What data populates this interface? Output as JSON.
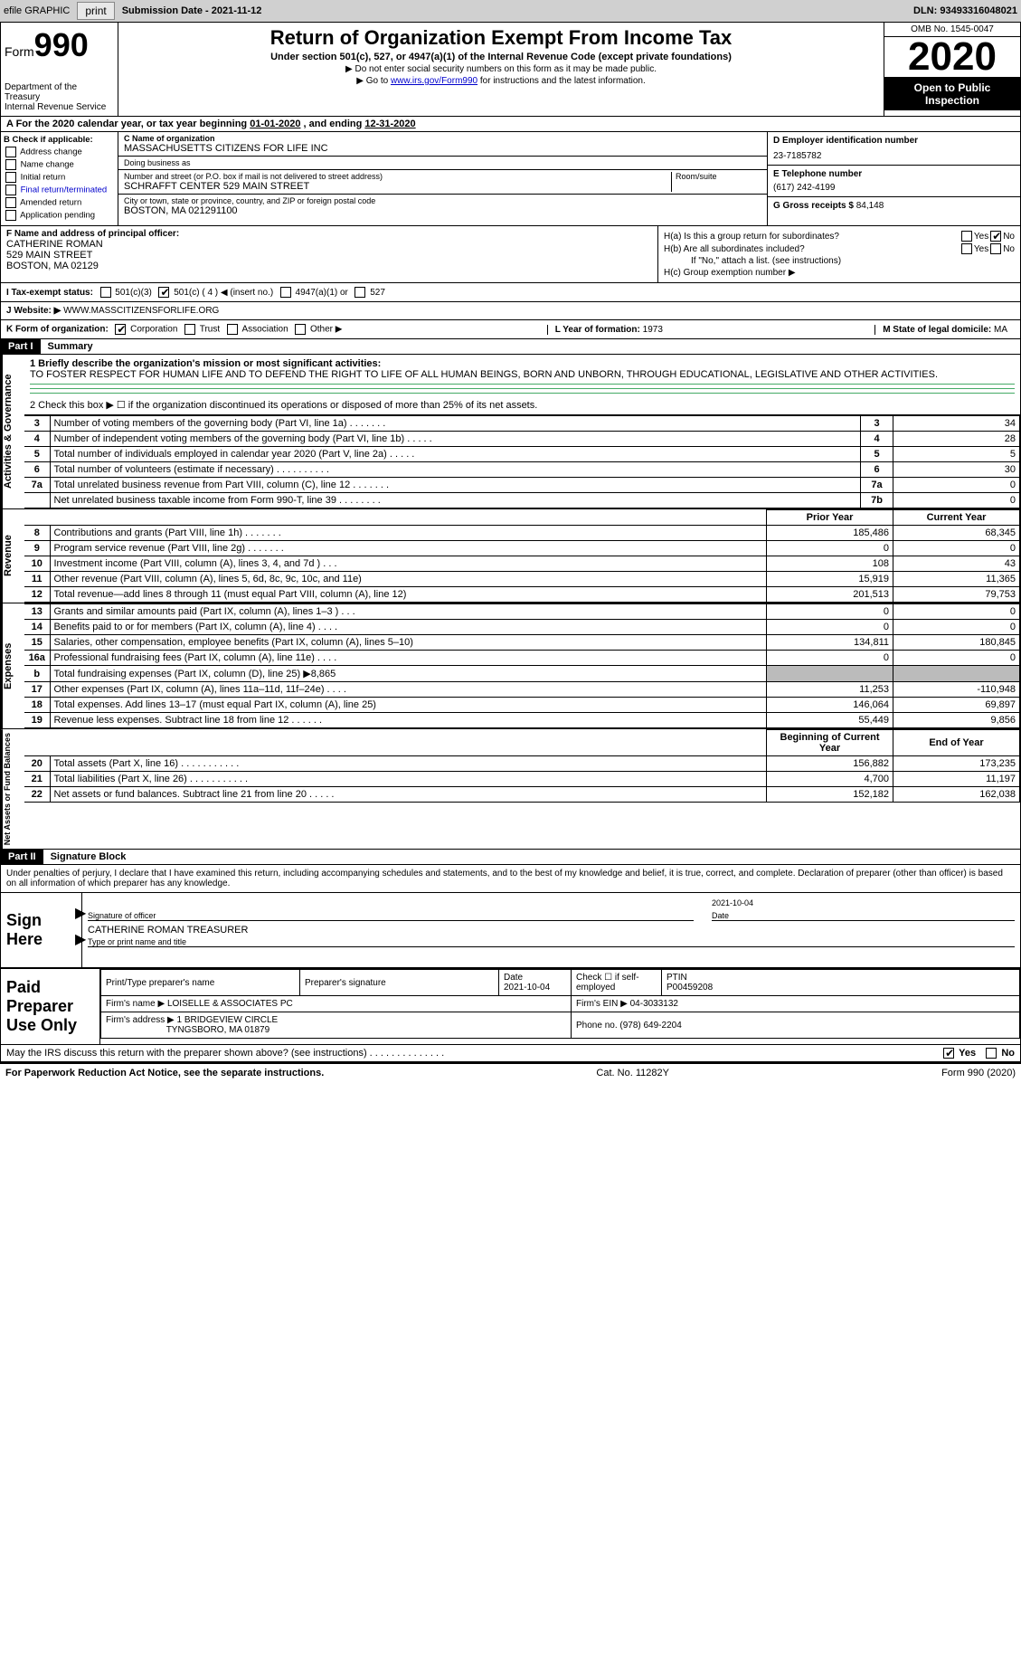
{
  "topbar": {
    "efile_label": "efile GRAPHIC",
    "print_btn": "print",
    "submission_label": "Submission Date - ",
    "submission_date": "2021-11-12",
    "dln_label": "DLN: ",
    "dln": "93493316048021"
  },
  "header": {
    "form_label": "Form",
    "form_number": "990",
    "title": "Return of Organization Exempt From Income Tax",
    "subtitle": "Under section 501(c), 527, or 4947(a)(1) of the Internal Revenue Code (except private foundations)",
    "note1": "▶ Do not enter social security numbers on this form as it may be made public.",
    "note2_pre": "▶ Go to ",
    "note2_link": "www.irs.gov/Form990",
    "note2_post": " for instructions and the latest information.",
    "dept": "Department of the Treasury\nInternal Revenue Service",
    "omb": "OMB No. 1545-0047",
    "year": "2020",
    "open_public": "Open to Public Inspection"
  },
  "period": {
    "text_pre": "A For the 2020 calendar year, or tax year beginning ",
    "begin": "01-01-2020",
    "mid": " , and ending ",
    "end": "12-31-2020"
  },
  "section_b": {
    "label": "B Check if applicable:",
    "opts": [
      "Address change",
      "Name change",
      "Initial return",
      "Final return/terminated",
      "Amended return",
      "Application pending"
    ]
  },
  "section_c": {
    "name_label": "C Name of organization",
    "name": "MASSACHUSETTS CITIZENS FOR LIFE INC",
    "dba_label": "Doing business as",
    "dba": "",
    "addr_label": "Number and street (or P.O. box if mail is not delivered to street address)",
    "room_label": "Room/suite",
    "addr": "SCHRAFFT CENTER 529 MAIN STREET",
    "city_label": "City or town, state or province, country, and ZIP or foreign postal code",
    "city": "BOSTON, MA  021291100"
  },
  "section_d": {
    "label": "D Employer identification number",
    "ein": "23-7185782"
  },
  "section_e": {
    "label": "E Telephone number",
    "phone": "(617) 242-4199"
  },
  "section_g": {
    "label": "G Gross receipts $ ",
    "amount": "84,148"
  },
  "section_f": {
    "label": "F Name and address of principal officer:",
    "name": "CATHERINE ROMAN",
    "addr1": "529 MAIN STREET",
    "addr2": "BOSTON, MA  02129"
  },
  "section_h": {
    "a_label": "H(a)  Is this a group return for subordinates?",
    "a_yes": "Yes",
    "a_no": "No",
    "b_label": "H(b)  Are all subordinates included?",
    "b_note": "If \"No,\" attach a list. (see instructions)",
    "c_label": "H(c)  Group exemption number ▶"
  },
  "section_i": {
    "label": "I    Tax-exempt status:",
    "opts": [
      "501(c)(3)",
      "501(c) ( 4 ) ◀ (insert no.)",
      "4947(a)(1) or",
      "527"
    ]
  },
  "section_j": {
    "label": "J    Website: ▶ ",
    "url": "WWW.MASSCITIZENSFORLIFE.ORG"
  },
  "section_k": {
    "label": "K Form of organization:",
    "opts": [
      "Corporation",
      "Trust",
      "Association",
      "Other ▶"
    ],
    "year_label": "L Year of formation: ",
    "year": "1973",
    "state_label": "M State of legal domicile: ",
    "state": "MA"
  },
  "part1": {
    "header": "Part I",
    "title": "Summary",
    "q1_label": "1  Briefly describe the organization's mission or most significant activities:",
    "mission": "TO FOSTER RESPECT FOR HUMAN LIFE AND TO DEFEND THE RIGHT TO LIFE OF ALL HUMAN BEINGS, BORN AND UNBORN, THROUGH EDUCATIONAL, LEGISLATIVE AND OTHER ACTIVITIES.",
    "q2": "2   Check this box ▶ ☐  if the organization discontinued its operations or disposed of more than 25% of its net assets.",
    "gov_rows": [
      {
        "n": "3",
        "d": "Number of voting members of the governing body (Part VI, line 1a)  .    .    .    .    .    .    .",
        "box": "3",
        "v": "34"
      },
      {
        "n": "4",
        "d": "Number of independent voting members of the governing body (Part VI, line 1b)   .    .    .    .    .",
        "box": "4",
        "v": "28"
      },
      {
        "n": "5",
        "d": "Total number of individuals employed in calendar year 2020 (Part V, line 2a)   .    .    .    .    .",
        "box": "5",
        "v": "5"
      },
      {
        "n": "6",
        "d": "Total number of volunteers (estimate if necessary)   .    .    .    .    .    .    .    .    .    .",
        "box": "6",
        "v": "30"
      },
      {
        "n": "7a",
        "d": "Total unrelated business revenue from Part VIII, column (C), line 12   .    .    .    .    .    .    .",
        "box": "7a",
        "v": "0"
      },
      {
        "n": "",
        "d": "Net unrelated business taxable income from Form 990-T, line 39   .    .    .    .    .    .    .    .",
        "box": "7b",
        "v": "0"
      }
    ],
    "col_prior": "Prior Year",
    "col_current": "Current Year",
    "rev_rows": [
      {
        "n": "8",
        "d": "Contributions and grants (Part VIII, line 1h)   .    .    .    .    .    .    .",
        "p": "185,486",
        "c": "68,345"
      },
      {
        "n": "9",
        "d": "Program service revenue (Part VIII, line 2g)   .    .    .    .    .    .    .",
        "p": "0",
        "c": "0"
      },
      {
        "n": "10",
        "d": "Investment income (Part VIII, column (A), lines 3, 4, and 7d )    .    .    .",
        "p": "108",
        "c": "43"
      },
      {
        "n": "11",
        "d": "Other revenue (Part VIII, column (A), lines 5, 6d, 8c, 9c, 10c, and 11e)",
        "p": "15,919",
        "c": "11,365"
      },
      {
        "n": "12",
        "d": "Total revenue—add lines 8 through 11 (must equal Part VIII, column (A), line 12)",
        "p": "201,513",
        "c": "79,753"
      }
    ],
    "exp_rows": [
      {
        "n": "13",
        "d": "Grants and similar amounts paid (Part IX, column (A), lines 1–3 )   .    .    .",
        "p": "0",
        "c": "0"
      },
      {
        "n": "14",
        "d": "Benefits paid to or for members (Part IX, column (A), line 4)   .    .    .    .",
        "p": "0",
        "c": "0"
      },
      {
        "n": "15",
        "d": "Salaries, other compensation, employee benefits (Part IX, column (A), lines 5–10)",
        "p": "134,811",
        "c": "180,845"
      },
      {
        "n": "16a",
        "d": "Professional fundraising fees (Part IX, column (A), line 11e)   .    .    .    .",
        "p": "0",
        "c": "0"
      },
      {
        "n": "b",
        "d": "Total fundraising expenses (Part IX, column (D), line 25) ▶8,865",
        "p": "grey",
        "c": "grey"
      },
      {
        "n": "17",
        "d": "Other expenses (Part IX, column (A), lines 11a–11d, 11f–24e)   .    .    .    .",
        "p": "11,253",
        "c": "-110,948"
      },
      {
        "n": "18",
        "d": "Total expenses. Add lines 13–17 (must equal Part IX, column (A), line 25)",
        "p": "146,064",
        "c": "69,897"
      },
      {
        "n": "19",
        "d": "Revenue less expenses. Subtract line 18 from line 12   .    .    .    .    .    .",
        "p": "55,449",
        "c": "9,856"
      }
    ],
    "col_begin": "Beginning of Current Year",
    "col_end": "End of Year",
    "net_rows": [
      {
        "n": "20",
        "d": "Total assets (Part X, line 16)   .    .    .    .    .    .    .    .    .    .    .",
        "p": "156,882",
        "c": "173,235"
      },
      {
        "n": "21",
        "d": "Total liabilities (Part X, line 26)  .    .    .    .    .    .    .    .    .    .    .",
        "p": "4,700",
        "c": "11,197"
      },
      {
        "n": "22",
        "d": "Net assets or fund balances. Subtract line 21 from line 20   .    .    .    .    .",
        "p": "152,182",
        "c": "162,038"
      }
    ]
  },
  "part2": {
    "header": "Part II",
    "title": "Signature Block",
    "declaration": "Under penalties of perjury, I declare that I have examined this return, including accompanying schedules and statements, and to the best of my knowledge and belief, it is true, correct, and complete. Declaration of preparer (other than officer) is based on all information of which preparer has any knowledge.",
    "sign_here": "Sign Here",
    "sig_officer": "Signature of officer",
    "sig_date_label": "Date",
    "sig_date": "2021-10-04",
    "officer_name": "CATHERINE ROMAN  TREASURER",
    "officer_type_label": "Type or print name and title",
    "paid_label": "Paid Preparer Use Only",
    "prep_name_label": "Print/Type preparer's name",
    "prep_sig_label": "Preparer's signature",
    "prep_date_label": "Date",
    "prep_date": "2021-10-04",
    "prep_check_label": "Check ☐ if self-employed",
    "ptin_label": "PTIN",
    "ptin": "P00459208",
    "firm_name_label": "Firm's name    ▶ ",
    "firm_name": "LOISELLE & ASSOCIATES PC",
    "firm_ein_label": "Firm's EIN ▶ ",
    "firm_ein": "04-3033132",
    "firm_addr_label": "Firm's address ▶ ",
    "firm_addr1": "1 BRIDGEVIEW CIRCLE",
    "firm_addr2": "TYNGSBORO, MA  01879",
    "firm_phone_label": "Phone no. ",
    "firm_phone": "(978) 649-2204",
    "discuss": "May the IRS discuss this return with the preparer shown above? (see instructions)   .    .    .    .    .    .    .    .    .    .    .    .    .    .",
    "discuss_yes": "Yes",
    "discuss_no": "No"
  },
  "footer": {
    "pra": "For Paperwork Reduction Act Notice, see the separate instructions.",
    "cat": "Cat. No. 11282Y",
    "form": "Form 990 (2020)"
  },
  "side_labels": {
    "gov": "Activities & Governance",
    "rev": "Revenue",
    "exp": "Expenses",
    "net": "Net Assets or Fund Balances"
  }
}
